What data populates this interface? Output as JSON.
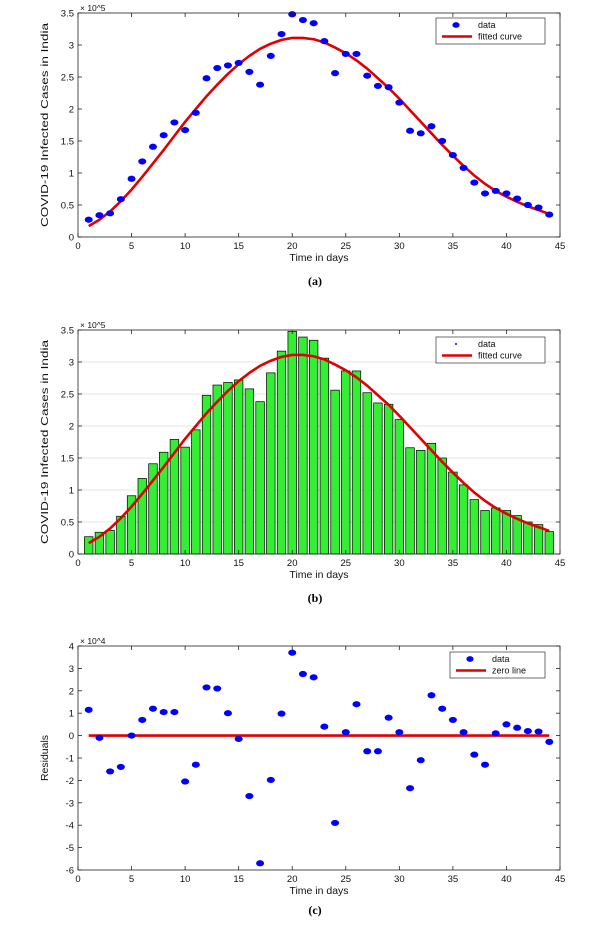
{
  "chart_data": [
    {
      "type": "scatter",
      "caption": "(a)",
      "xlabel": "Time in days",
      "ylabel": "COVID-19 Infected Cases in India",
      "y_exponent": "× 10^5",
      "xlim": [
        0,
        45
      ],
      "ylim": [
        0,
        350000
      ],
      "xticks": [
        0,
        5,
        10,
        15,
        20,
        25,
        30,
        35,
        40,
        45
      ],
      "yticks": [
        0,
        50000,
        100000,
        150000,
        200000,
        250000,
        300000,
        350000
      ],
      "ytick_labels": [
        "0",
        "0.5",
        "1",
        "1.5",
        "2",
        "2.5",
        "3",
        "3.5"
      ],
      "grid": false,
      "legend_position": "top-right",
      "series": [
        {
          "name": "data",
          "kind": "points",
          "color": "#0000ff",
          "x": [
            1,
            2,
            3,
            4,
            5,
            6,
            7,
            8,
            9,
            10,
            11,
            12,
            13,
            14,
            15,
            16,
            17,
            18,
            19,
            20,
            21,
            22,
            23,
            24,
            25,
            26,
            27,
            28,
            29,
            30,
            31,
            32,
            33,
            34,
            35,
            36,
            37,
            38,
            39,
            40,
            41,
            42,
            43,
            44
          ],
          "y": [
            27000,
            34000,
            37000,
            59000,
            91000,
            118000,
            141000,
            159000,
            179000,
            167000,
            194000,
            248000,
            264000,
            268000,
            272000,
            258000,
            238000,
            283000,
            317000,
            348000,
            339000,
            334000,
            306000,
            256000,
            286000,
            286000,
            252000,
            236000,
            234000,
            210000,
            166000,
            162000,
            173000,
            150000,
            128000,
            108000,
            85000,
            68000,
            72000,
            68000,
            60000,
            50000,
            46000,
            35000
          ]
        },
        {
          "name": "fitted curve",
          "kind": "line",
          "color": "#e00000",
          "x": [
            1,
            2,
            3,
            4,
            5,
            6,
            7,
            8,
            9,
            10,
            11,
            12,
            13,
            14,
            15,
            16,
            17,
            18,
            19,
            20,
            21,
            22,
            23,
            24,
            25,
            26,
            27,
            28,
            29,
            30,
            31,
            32,
            33,
            34,
            35,
            36,
            37,
            38,
            39,
            40,
            41,
            42,
            43,
            44
          ],
          "y": [
            17000,
            27000,
            40000,
            56000,
            74000,
            94000,
            115000,
            136000,
            158000,
            180000,
            200000,
            220000,
            238000,
            255000,
            270000,
            283000,
            294000,
            302000,
            308000,
            311000,
            311000,
            309000,
            304000,
            296000,
            287000,
            276000,
            263000,
            248000,
            233000,
            216000,
            198000,
            180000,
            162000,
            144000,
            127000,
            111000,
            96000,
            83000,
            72000,
            63000,
            55000,
            48000,
            42000,
            36000
          ]
        }
      ]
    },
    {
      "type": "bar",
      "caption": "(b)",
      "xlabel": "Time in days",
      "ylabel": "COVID-19 Infected Cases in India",
      "y_exponent": "× 10^5",
      "xlim": [
        0,
        45
      ],
      "ylim": [
        0,
        350000
      ],
      "xticks": [
        0,
        5,
        10,
        15,
        20,
        25,
        30,
        35,
        40,
        45
      ],
      "yticks": [
        0,
        50000,
        100000,
        150000,
        200000,
        250000,
        300000,
        350000
      ],
      "ytick_labels": [
        "0",
        "0.5",
        "1",
        "1.5",
        "2",
        "2.5",
        "3",
        "3.5"
      ],
      "grid": true,
      "legend_position": "top-right",
      "series": [
        {
          "name": "data",
          "kind": "bars",
          "color": "#33ee33",
          "x": [
            1,
            2,
            3,
            4,
            5,
            6,
            7,
            8,
            9,
            10,
            11,
            12,
            13,
            14,
            15,
            16,
            17,
            18,
            19,
            20,
            21,
            22,
            23,
            24,
            25,
            26,
            27,
            28,
            29,
            30,
            31,
            32,
            33,
            34,
            35,
            36,
            37,
            38,
            39,
            40,
            41,
            42,
            43,
            44
          ],
          "y": [
            27000,
            34000,
            37000,
            59000,
            91000,
            118000,
            141000,
            159000,
            179000,
            167000,
            194000,
            248000,
            264000,
            268000,
            272000,
            258000,
            238000,
            283000,
            317000,
            348000,
            339000,
            334000,
            306000,
            256000,
            286000,
            286000,
            252000,
            236000,
            234000,
            210000,
            166000,
            162000,
            173000,
            150000,
            128000,
            108000,
            85000,
            68000,
            72000,
            68000,
            60000,
            50000,
            46000,
            35000
          ]
        },
        {
          "name": "fitted curve",
          "kind": "line",
          "color": "#e00000",
          "x": [
            1,
            2,
            3,
            4,
            5,
            6,
            7,
            8,
            9,
            10,
            11,
            12,
            13,
            14,
            15,
            16,
            17,
            18,
            19,
            20,
            21,
            22,
            23,
            24,
            25,
            26,
            27,
            28,
            29,
            30,
            31,
            32,
            33,
            34,
            35,
            36,
            37,
            38,
            39,
            40,
            41,
            42,
            43,
            44
          ],
          "y": [
            17000,
            27000,
            40000,
            56000,
            74000,
            94000,
            115000,
            136000,
            158000,
            180000,
            200000,
            220000,
            238000,
            255000,
            270000,
            283000,
            294000,
            302000,
            308000,
            311000,
            311000,
            309000,
            304000,
            296000,
            287000,
            276000,
            263000,
            248000,
            233000,
            216000,
            198000,
            180000,
            162000,
            144000,
            127000,
            111000,
            96000,
            83000,
            72000,
            63000,
            55000,
            48000,
            42000,
            36000
          ]
        }
      ]
    },
    {
      "type": "scatter",
      "caption": "(c)",
      "xlabel": "Time in days",
      "ylabel": "Residuals",
      "y_exponent": "× 10^4",
      "xlim": [
        0,
        45
      ],
      "ylim": [
        -60000,
        40000
      ],
      "xticks": [
        0,
        5,
        10,
        15,
        20,
        25,
        30,
        35,
        40,
        45
      ],
      "yticks": [
        -60000,
        -50000,
        -40000,
        -30000,
        -20000,
        -10000,
        0,
        10000,
        20000,
        30000,
        40000
      ],
      "ytick_labels": [
        "-6",
        "-5",
        "-4",
        "-3",
        "-2",
        "-1",
        "0",
        "1",
        "2",
        "3",
        "4"
      ],
      "grid": false,
      "legend_position": "top-right",
      "series": [
        {
          "name": "data",
          "kind": "points",
          "color": "#0000ff",
          "x": [
            1,
            2,
            3,
            4,
            5,
            6,
            7,
            8,
            9,
            10,
            11,
            12,
            13,
            14,
            15,
            16,
            17,
            18,
            19,
            20,
            21,
            22,
            23,
            24,
            25,
            26,
            27,
            28,
            29,
            30,
            31,
            32,
            33,
            34,
            35,
            36,
            37,
            38,
            39,
            40,
            41,
            42,
            43,
            44
          ],
          "y": [
            11500,
            -1000,
            -16000,
            -14000,
            0,
            7000,
            12000,
            10500,
            10500,
            -20500,
            -13000,
            21500,
            21000,
            10000,
            -1500,
            -27000,
            -57000,
            -19800,
            9800,
            37000,
            27500,
            26000,
            4000,
            -39000,
            1500,
            14000,
            -7000,
            -7000,
            8000,
            1500,
            -23500,
            -11000,
            18000,
            12000,
            7000,
            1500,
            -8500,
            -13000,
            1000,
            5000,
            3500,
            2000,
            1800,
            -2800
          ]
        },
        {
          "name": "zero line",
          "kind": "line",
          "color": "#e00000",
          "x": [
            1,
            44
          ],
          "y": [
            0,
            0
          ]
        }
      ]
    }
  ]
}
